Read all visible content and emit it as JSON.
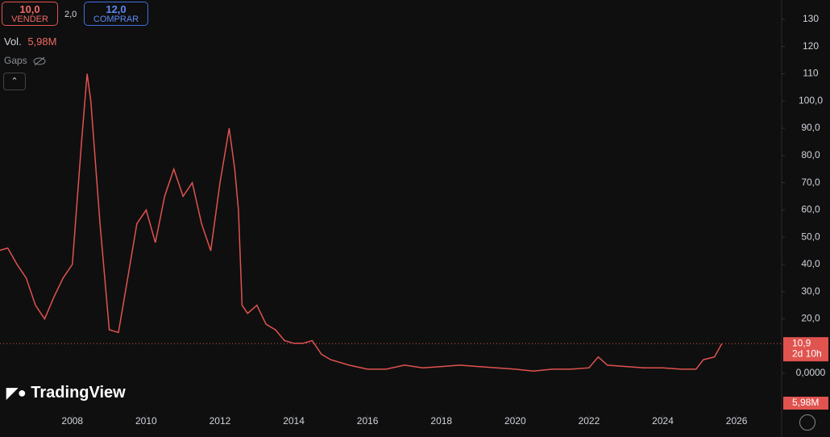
{
  "ui": {
    "sell_price": "10,0",
    "sell_label": "VENDER",
    "spread": "2,0",
    "buy_price": "12,0",
    "buy_label": "COMPRAR",
    "vol_label": "Vol.",
    "vol_value": "5,98M",
    "gaps": "Gaps",
    "brand": "TradingView",
    "vol_badge": "5,98M",
    "countdown": "2d 10h"
  },
  "chart_data": {
    "type": "line",
    "color": "#e0534f",
    "x": [
      2006.0,
      2006.25,
      2006.5,
      2006.75,
      2007.0,
      2007.25,
      2007.5,
      2007.75,
      2008.0,
      2008.25,
      2008.4,
      2008.5,
      2008.75,
      2009.0,
      2009.25,
      2009.5,
      2009.75,
      2010.0,
      2010.25,
      2010.5,
      2010.75,
      2011.0,
      2011.25,
      2011.5,
      2011.75,
      2012.0,
      2012.25,
      2012.4,
      2012.5,
      2012.6,
      2012.75,
      2013.0,
      2013.25,
      2013.5,
      2013.75,
      2014.0,
      2014.25,
      2014.5,
      2014.75,
      2015.0,
      2015.5,
      2016.0,
      2016.5,
      2017.0,
      2017.5,
      2018.0,
      2018.5,
      2019.0,
      2019.5,
      2020.0,
      2020.5,
      2021.0,
      2021.5,
      2022.0,
      2022.25,
      2022.5,
      2023.0,
      2023.5,
      2024.0,
      2024.5,
      2024.9,
      2025.1,
      2025.4,
      2025.6
    ],
    "values": [
      45,
      46,
      40,
      35,
      25,
      20,
      28,
      35,
      40,
      85,
      110,
      100,
      55,
      16,
      15,
      35,
      55,
      60,
      48,
      65,
      75,
      65,
      70,
      55,
      45,
      70,
      90,
      75,
      60,
      25,
      22,
      25,
      18,
      16,
      12,
      11,
      11,
      12,
      7,
      5,
      3,
      1.5,
      1.5,
      3,
      2,
      2.5,
      3,
      2.5,
      2,
      1.5,
      0.8,
      1.5,
      1.5,
      2,
      6,
      3,
      2.5,
      2,
      2,
      1.5,
      1.5,
      5,
      6,
      10.9
    ],
    "last_price": 10.9,
    "last_price_label": "10,9",
    "xlim": [
      2006.04,
      2027.22
    ],
    "xticks": [
      2008,
      2010,
      2012,
      2014,
      2016,
      2018,
      2020,
      2022,
      2024,
      2026
    ],
    "ylim": [
      -15.4,
      137.1
    ],
    "yticks": [
      {
        "value": 0,
        "label": "0,0000"
      },
      {
        "value": 20,
        "label": "20,0"
      },
      {
        "value": 30,
        "label": "30,0"
      },
      {
        "value": 40,
        "label": "40,0"
      },
      {
        "value": 50,
        "label": "50,0"
      },
      {
        "value": 60,
        "label": "60,0"
      },
      {
        "value": 70,
        "label": "70,0"
      },
      {
        "value": 80,
        "label": "80,0"
      },
      {
        "value": 90,
        "label": "90,0"
      },
      {
        "value": 100,
        "label": "100,0"
      },
      110,
      120,
      130
    ]
  }
}
